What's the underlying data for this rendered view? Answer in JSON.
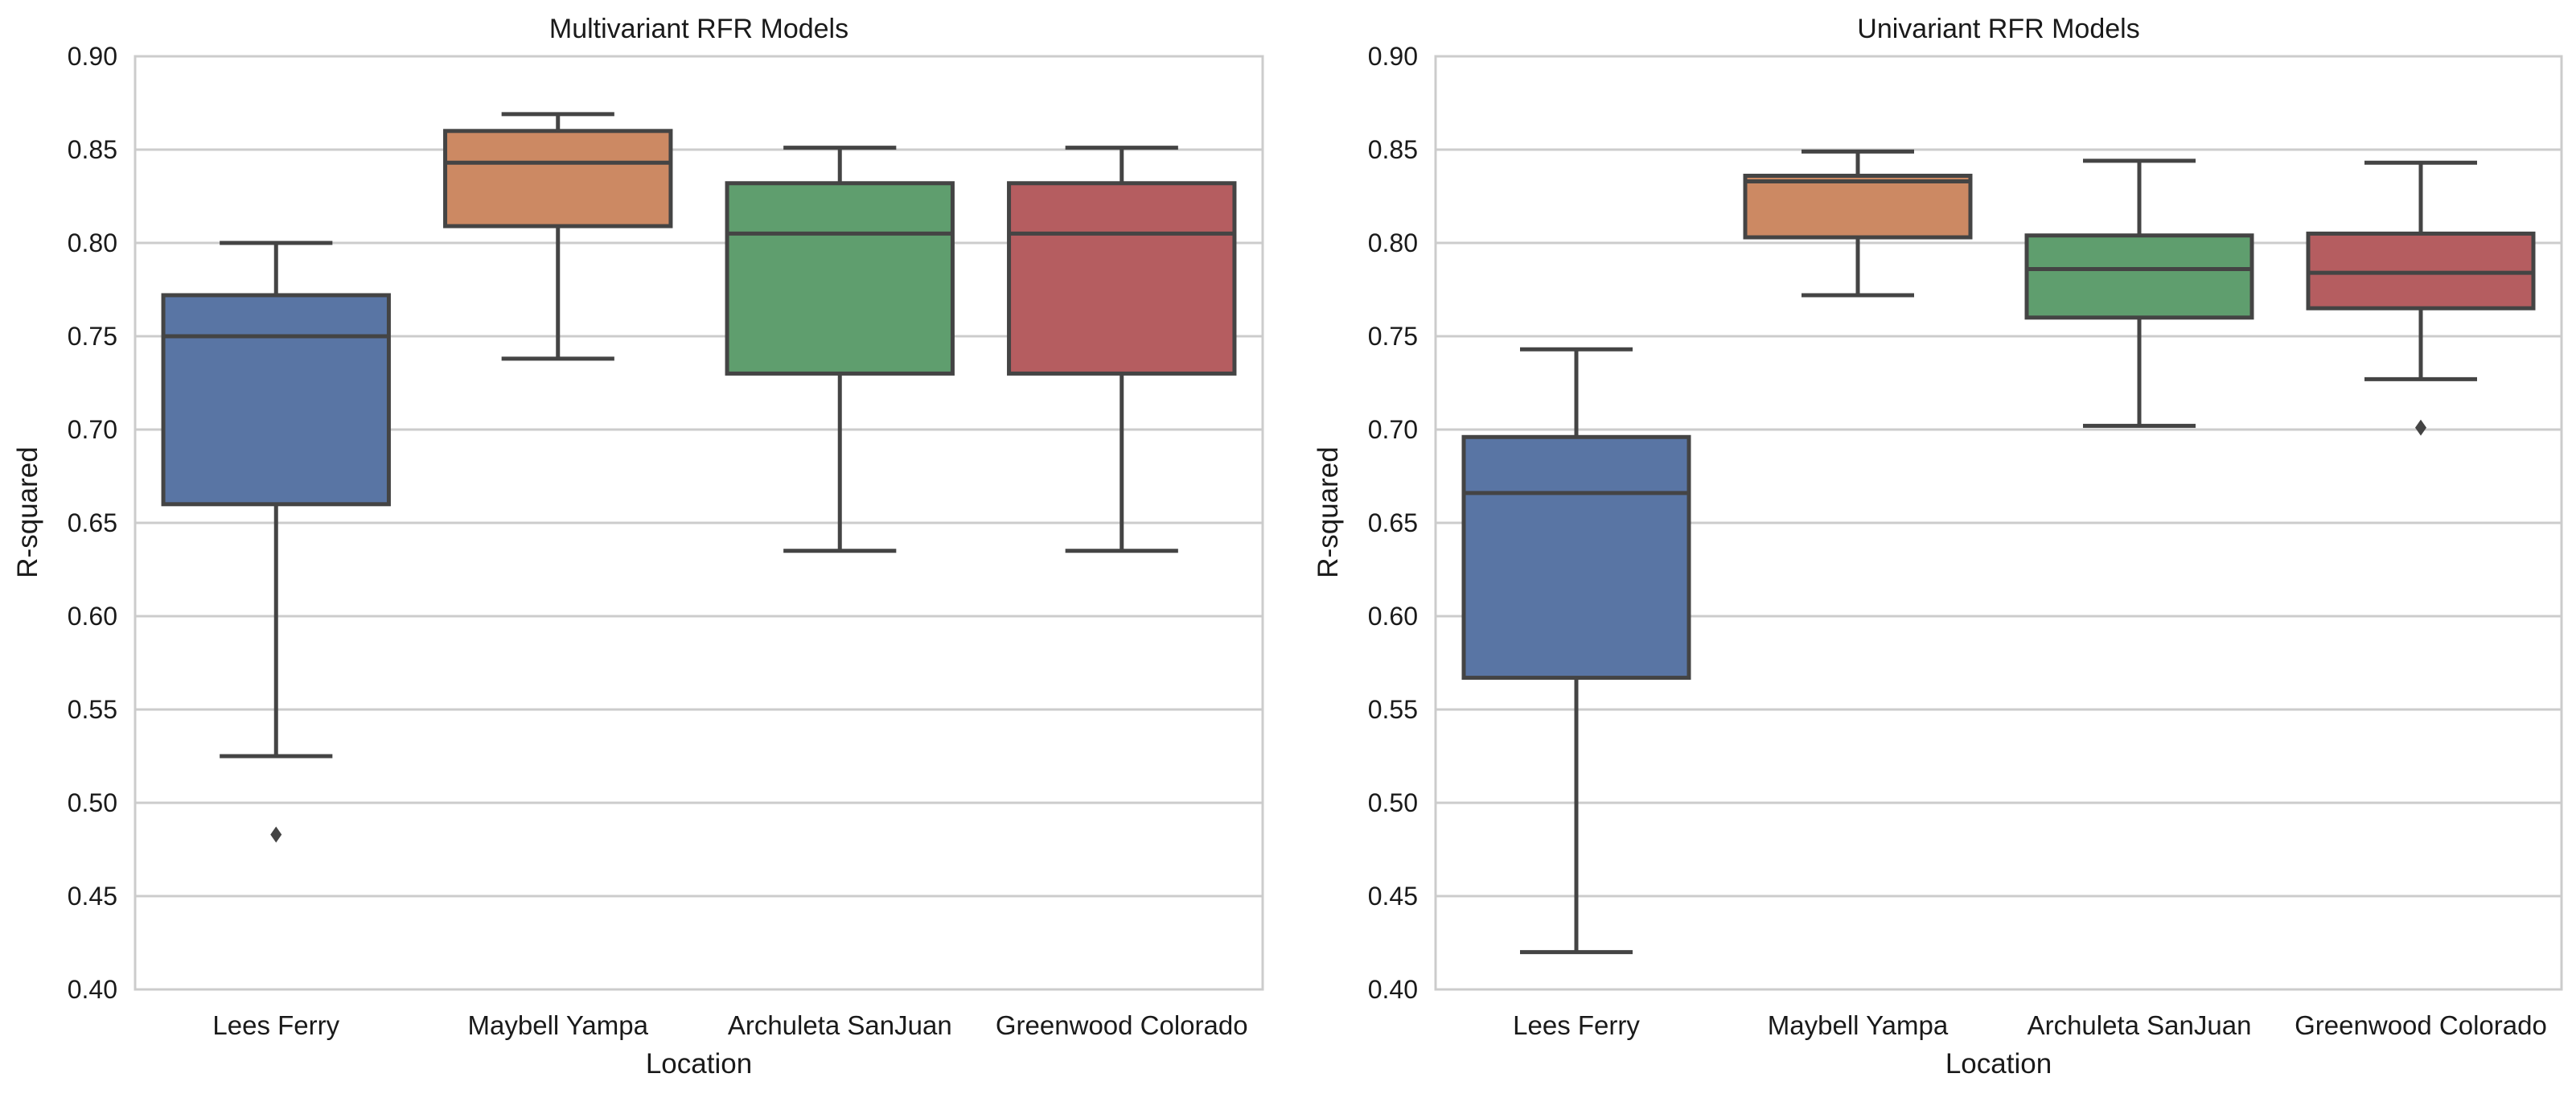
{
  "chart_data": [
    {
      "type": "box",
      "title": "Multivariant RFR Models",
      "xlabel": "Location",
      "ylabel": "R-squared",
      "ylim": [
        0.4,
        0.9
      ],
      "yticks": [
        "0.40",
        "0.45",
        "0.50",
        "0.55",
        "0.60",
        "0.65",
        "0.70",
        "0.75",
        "0.80",
        "0.85",
        "0.90"
      ],
      "grid": true,
      "categories": [
        "Lees Ferry",
        "Maybell Yampa",
        "Archuleta SanJuan",
        "Greenwood Colorado"
      ],
      "boxes": [
        {
          "category": "Lees Ferry",
          "whisker_low": 0.525,
          "q1": 0.66,
          "median": 0.75,
          "q3": 0.772,
          "whisker_high": 0.8,
          "outliers": [
            0.483
          ]
        },
        {
          "category": "Maybell Yampa",
          "whisker_low": 0.738,
          "q1": 0.809,
          "median": 0.843,
          "q3": 0.86,
          "whisker_high": 0.869,
          "outliers": []
        },
        {
          "category": "Archuleta SanJuan",
          "whisker_low": 0.635,
          "q1": 0.73,
          "median": 0.805,
          "q3": 0.832,
          "whisker_high": 0.851,
          "outliers": []
        },
        {
          "category": "Greenwood Colorado",
          "whisker_low": 0.635,
          "q1": 0.73,
          "median": 0.805,
          "q3": 0.832,
          "whisker_high": 0.851,
          "outliers": []
        }
      ]
    },
    {
      "type": "box",
      "title": "Univariant RFR Models",
      "xlabel": "Location",
      "ylabel": "R-squared",
      "ylim": [
        0.4,
        0.9
      ],
      "yticks": [
        "0.40",
        "0.45",
        "0.50",
        "0.55",
        "0.60",
        "0.65",
        "0.70",
        "0.75",
        "0.80",
        "0.85",
        "0.90"
      ],
      "grid": true,
      "categories": [
        "Lees Ferry",
        "Maybell Yampa",
        "Archuleta SanJuan",
        "Greenwood Colorado"
      ],
      "boxes": [
        {
          "category": "Lees Ferry",
          "whisker_low": 0.42,
          "q1": 0.567,
          "median": 0.666,
          "q3": 0.696,
          "whisker_high": 0.743,
          "outliers": []
        },
        {
          "category": "Maybell Yampa",
          "whisker_low": 0.772,
          "q1": 0.803,
          "median": 0.833,
          "q3": 0.836,
          "whisker_high": 0.849,
          "outliers": []
        },
        {
          "category": "Archuleta SanJuan",
          "whisker_low": 0.702,
          "q1": 0.76,
          "median": 0.786,
          "q3": 0.804,
          "whisker_high": 0.844,
          "outliers": []
        },
        {
          "category": "Greenwood Colorado",
          "whisker_low": 0.727,
          "q1": 0.765,
          "median": 0.784,
          "q3": 0.805,
          "whisker_high": 0.843,
          "outliers": [
            0.701
          ]
        }
      ]
    }
  ],
  "colors": {
    "box_fills": [
      "#5975a4",
      "#cc8963",
      "#5f9e6e",
      "#b55d60"
    ],
    "line": "#444444",
    "grid": "#cccccc",
    "axes_frame": "#cccccc"
  }
}
